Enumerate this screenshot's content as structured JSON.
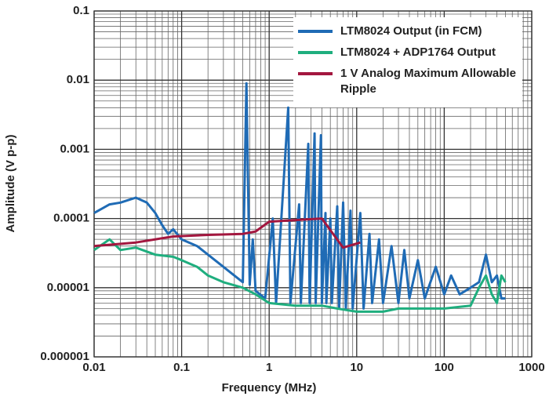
{
  "chart_data": {
    "type": "line",
    "xlabel": "Frequency (MHz)",
    "ylabel": "Amplitude (V p-p)",
    "xscale": "log",
    "yscale": "log",
    "xlim": [
      0.01,
      1000
    ],
    "ylim": [
      1e-06,
      0.1
    ],
    "xticks": [
      0.01,
      0.1,
      1,
      10,
      100,
      1000
    ],
    "yticks": [
      1e-06,
      1e-05,
      0.0001,
      0.001,
      0.01,
      0.1
    ],
    "grid": true,
    "legend": "upper right",
    "series": [
      {
        "name": "LTM8024 Output (in FCM)",
        "color": "#1f6bb5",
        "x": [
          0.01,
          0.015,
          0.02,
          0.03,
          0.04,
          0.05,
          0.06,
          0.07,
          0.08,
          0.1,
          0.15,
          0.2,
          0.3,
          0.4,
          0.5,
          0.55,
          0.6,
          0.65,
          0.7,
          0.9,
          1.1,
          1.2,
          1.65,
          1.75,
          2.2,
          2.3,
          2.8,
          2.9,
          3.3,
          3.4,
          3.9,
          4,
          4.4,
          4.5,
          5,
          5.2,
          6,
          6.3,
          7,
          7.5,
          8.5,
          9,
          11,
          12,
          14,
          15,
          18,
          20,
          25,
          30,
          35,
          40,
          50,
          60,
          80,
          100,
          120,
          150,
          200,
          250,
          300,
          350,
          400,
          450,
          500
        ],
        "values": [
          0.00012,
          0.00016,
          0.00017,
          0.0002,
          0.00017,
          0.00012,
          8e-05,
          6e-05,
          7e-05,
          5e-05,
          4e-05,
          3e-05,
          2e-05,
          1.5e-05,
          1.2e-05,
          0.009,
          1.1e-05,
          5e-05,
          9e-06,
          7e-06,
          0.0001,
          6e-06,
          0.004,
          6e-06,
          0.00016,
          6e-06,
          0.0012,
          6e-06,
          0.0017,
          6e-06,
          0.0016,
          6e-06,
          0.00012,
          6e-06,
          0.0001,
          6e-06,
          0.00015,
          5e-06,
          0.00017,
          5e-06,
          0.00013,
          5e-06,
          0.00012,
          5e-06,
          6e-05,
          6e-06,
          5e-05,
          6e-06,
          4e-05,
          6e-06,
          3.5e-05,
          7e-06,
          2.5e-05,
          7e-06,
          2e-05,
          8e-06,
          1.5e-05,
          8e-06,
          1e-05,
          1.2e-05,
          3e-05,
          1.2e-05,
          1.5e-05,
          7e-06,
          7e-06
        ]
      },
      {
        "name": "LTM8024 + ADP1764 Output",
        "color": "#1fae7e",
        "x": [
          0.01,
          0.015,
          0.02,
          0.03,
          0.05,
          0.08,
          0.1,
          0.15,
          0.2,
          0.3,
          0.5,
          0.7,
          1,
          2,
          4,
          6,
          10,
          20,
          30,
          50,
          100,
          200,
          250,
          300,
          350,
          400,
          450,
          500
        ],
        "values": [
          3.5e-05,
          5e-05,
          3.5e-05,
          3.8e-05,
          3e-05,
          2.8e-05,
          2.5e-05,
          2e-05,
          1.5e-05,
          1.2e-05,
          1e-05,
          8e-06,
          6e-06,
          5.5e-06,
          5.5e-06,
          5e-06,
          4.5e-06,
          4.5e-06,
          5e-06,
          5e-06,
          5e-06,
          5.5e-06,
          1e-05,
          1.5e-05,
          8e-06,
          6e-06,
          1.5e-05,
          1.2e-05
        ]
      },
      {
        "name": "1 V Analog Maximum Allowable Ripple",
        "color": "#a3173f",
        "x": [
          0.01,
          0.03,
          0.08,
          0.2,
          0.5,
          0.7,
          1,
          2,
          4,
          7,
          11
        ],
        "values": [
          4e-05,
          4.5e-05,
          5.5e-05,
          5.8e-05,
          6e-05,
          6.5e-05,
          9e-05,
          9.5e-05,
          0.0001,
          3.8e-05,
          4.5e-05
        ]
      }
    ]
  }
}
